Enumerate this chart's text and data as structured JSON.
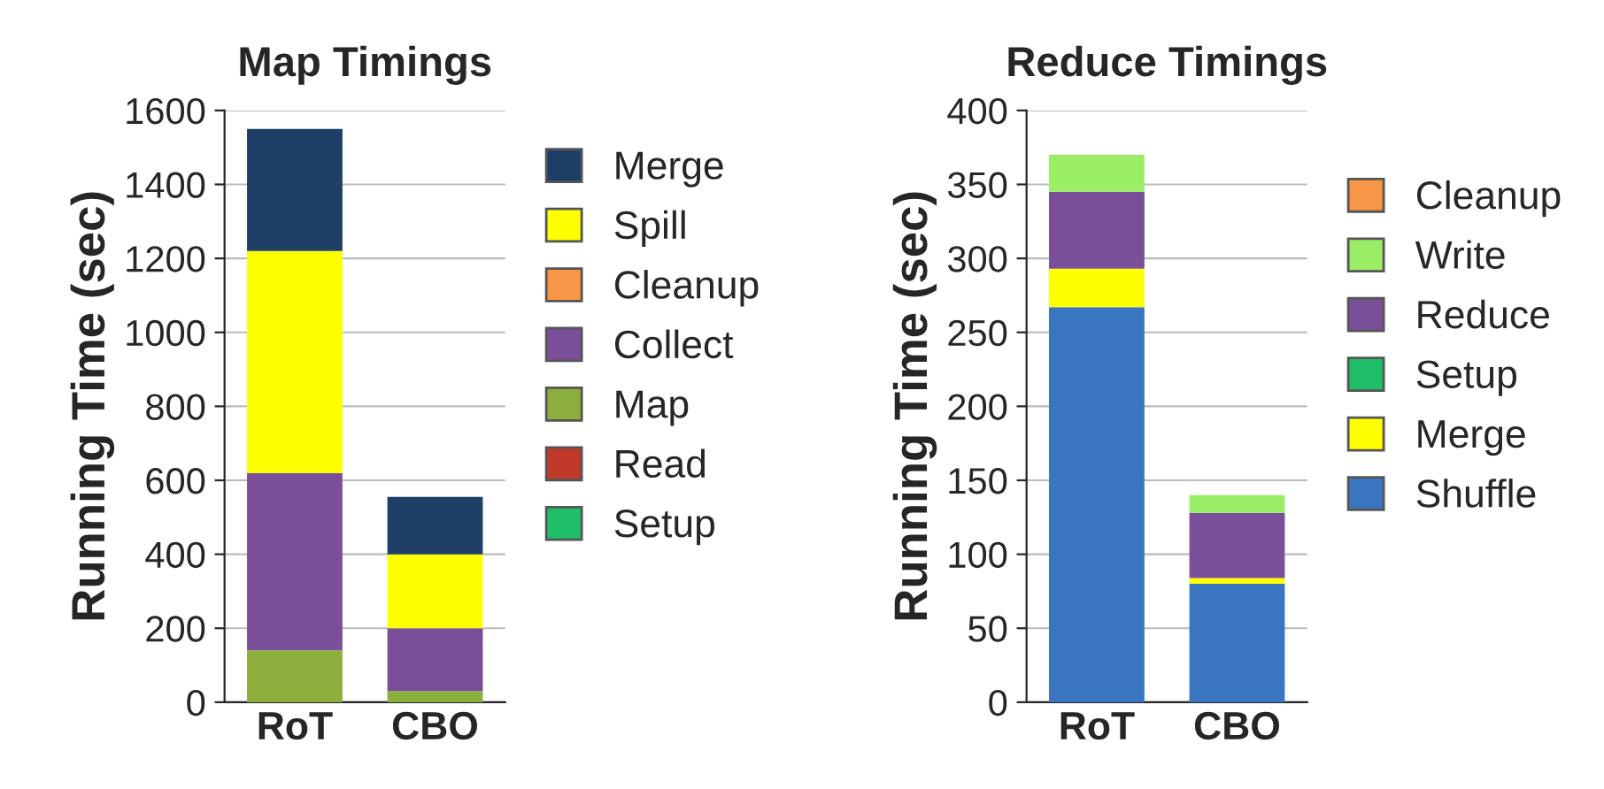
{
  "chart_data": [
    {
      "type": "bar",
      "title": "Map Timings",
      "ylabel": "Running Time (sec)",
      "categories": [
        "RoT",
        "CBO"
      ],
      "stacked": true,
      "ylim": [
        0,
        1600
      ],
      "yticks": [
        0,
        200,
        400,
        600,
        800,
        1000,
        1200,
        1400,
        1600
      ],
      "grid": "y",
      "legend": "right",
      "series": [
        {
          "name": "Setup",
          "color": "#1fbf6a",
          "values": [
            0,
            0
          ]
        },
        {
          "name": "Read",
          "color": "#c0392b",
          "values": [
            0,
            0
          ]
        },
        {
          "name": "Map",
          "color": "#8cae3c",
          "values": [
            140,
            30
          ]
        },
        {
          "name": "Collect",
          "color": "#7a4f9a",
          "values": [
            480,
            170
          ]
        },
        {
          "name": "Cleanup",
          "color": "#f79646",
          "values": [
            0,
            0
          ]
        },
        {
          "name": "Spill",
          "color": "#ffff00",
          "values": [
            600,
            200
          ]
        },
        {
          "name": "Merge",
          "color": "#1f3f66",
          "values": [
            330,
            155
          ]
        }
      ]
    },
    {
      "type": "bar",
      "title": "Reduce Timings",
      "ylabel": "Running Time (sec)",
      "categories": [
        "RoT",
        "CBO"
      ],
      "stacked": true,
      "ylim": [
        0,
        400
      ],
      "yticks": [
        0,
        50,
        100,
        150,
        200,
        250,
        300,
        350,
        400
      ],
      "grid": "y",
      "legend": "right",
      "series": [
        {
          "name": "Shuffle",
          "color": "#3a76bf",
          "values": [
            267,
            80
          ]
        },
        {
          "name": "Merge",
          "color": "#ffff00",
          "values": [
            26,
            4
          ]
        },
        {
          "name": "Setup",
          "color": "#1fbf6a",
          "values": [
            0,
            0
          ]
        },
        {
          "name": "Reduce",
          "color": "#7a4f9a",
          "values": [
            52,
            44
          ]
        },
        {
          "name": "Write",
          "color": "#99ee66",
          "values": [
            25,
            12
          ]
        },
        {
          "name": "Cleanup",
          "color": "#f79646",
          "values": [
            0,
            0
          ]
        }
      ]
    }
  ]
}
